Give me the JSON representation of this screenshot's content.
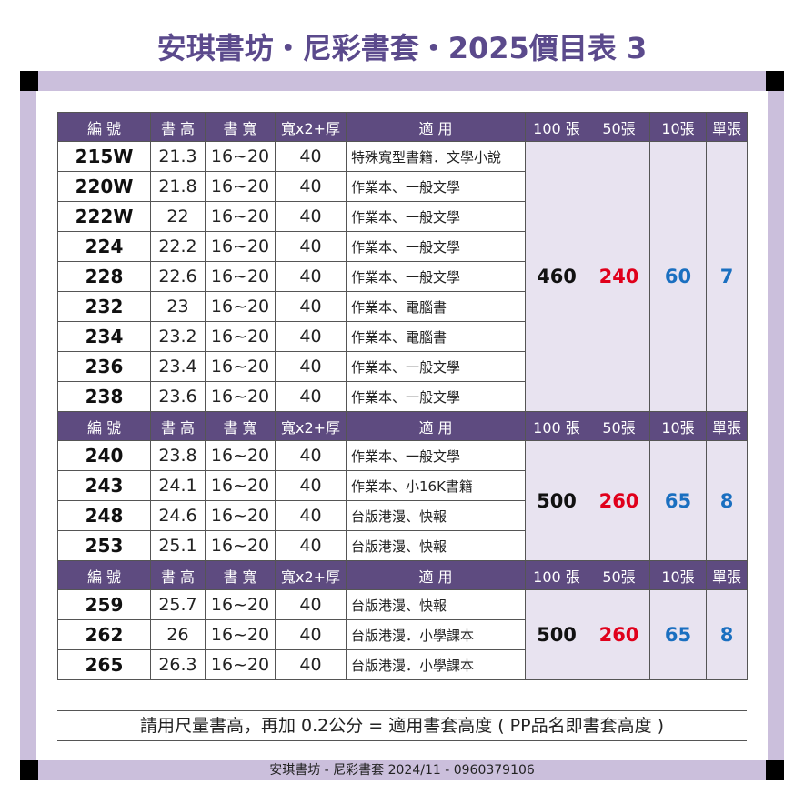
{
  "title": "安琪書坊・尼彩書套・2025價目表 3",
  "sections": [
    {
      "header": [
        "編 號",
        "書 高",
        "書 寬",
        "寬x2+厚",
        "適 用",
        "100 張",
        "50張",
        "10張",
        "單張"
      ],
      "rows": [
        [
          "215W",
          21.3,
          "16~20",
          40,
          "特殊寬型書籍．文學小說"
        ],
        [
          "220W",
          21.8,
          "16~20",
          40,
          "作業本、一般文學"
        ],
        [
          "222W",
          22,
          "16~20",
          40,
          "作業本、一般文學"
        ],
        [
          "224",
          22.2,
          "16~20",
          40,
          "作業本、一般文學"
        ],
        [
          "228",
          22.6,
          "16~20",
          40,
          "作業本、一般文學"
        ],
        [
          "232",
          23,
          "16~20",
          40,
          "作業本、電腦書"
        ],
        [
          "234",
          23.2,
          "16~20",
          40,
          "作業本、電腦書"
        ],
        [
          "236",
          23.4,
          "16~20",
          40,
          "作業本、一般文學"
        ],
        [
          "238",
          23.6,
          "16~20",
          40,
          "作業本、一般文學"
        ]
      ],
      "prices": [
        460,
        240,
        60,
        7
      ]
    },
    {
      "header": [
        "編 號",
        "書 高",
        "書 寬",
        "寬x2+厚",
        "適 用",
        "100 張",
        "50張",
        "10張",
        "單張"
      ],
      "rows": [
        [
          "240",
          23.8,
          "16~20",
          40,
          "作業本、一般文學"
        ],
        [
          "243",
          24.1,
          "16~20",
          40,
          "作業本、小16K書籍"
        ],
        [
          "248",
          24.6,
          "16~20",
          40,
          "台版港漫、快報"
        ],
        [
          "253",
          25.1,
          "16~20",
          40,
          "台版港漫、快報"
        ]
      ],
      "prices": [
        500,
        260,
        65,
        8
      ]
    },
    {
      "header": [
        "編 號",
        "書 高",
        "書 寬",
        "寬x2+厚",
        "適 用",
        "100 張",
        "50張",
        "10張",
        "單張"
      ],
      "rows": [
        [
          "259",
          25.7,
          "16~20",
          40,
          "台版港漫、快報"
        ],
        [
          "262",
          26,
          "16~20",
          40,
          "台版港漫．小學課本"
        ],
        [
          "265",
          26.3,
          "16~20",
          40,
          "台版港漫．小學課本"
        ]
      ],
      "prices": [
        500,
        260,
        65,
        8
      ]
    }
  ],
  "note": "請用尺量書高，再加 0.2公分 = 適用書套高度 ( PP品名即書套高度 )",
  "footer": "安琪書坊 - 尼彩書套 2024/11 - 0960379106"
}
